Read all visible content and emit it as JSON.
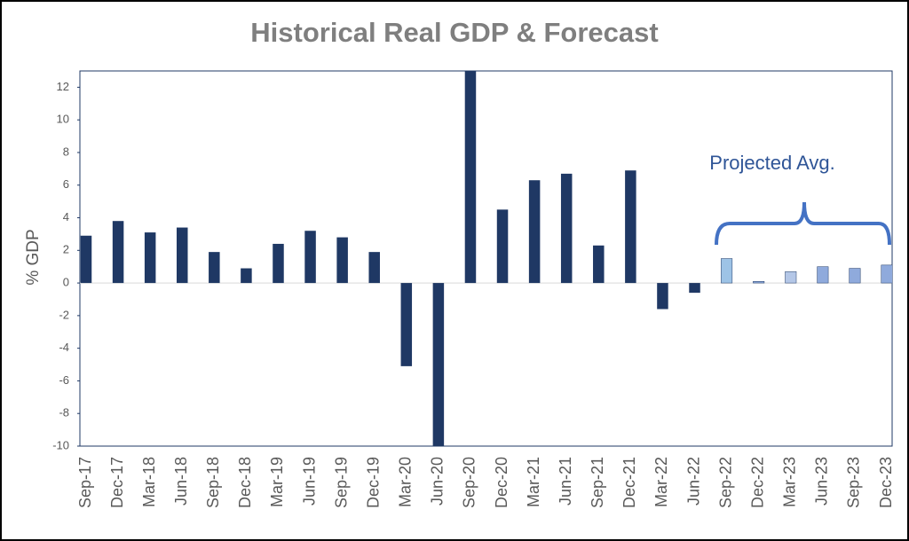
{
  "chart_data": {
    "type": "bar",
    "title": "Historical Real GDP & Forecast",
    "y_label": "% GDP",
    "annotation": "Projected Avg.",
    "categories": [
      "Sep-17",
      "Dec-17",
      "Mar-18",
      "Jun-18",
      "Sep-18",
      "Dec-18",
      "Mar-19",
      "Jun-19",
      "Sep-19",
      "Dec-19",
      "Mar-20",
      "Jun-20",
      "Sep-20",
      "Dec-20",
      "Mar-21",
      "Jun-21",
      "Sep-21",
      "Dec-21",
      "Mar-22",
      "Jun-22",
      "Sep-22",
      "Dec-22",
      "Mar-23",
      "Jun-23",
      "Sep-23",
      "Dec-23"
    ],
    "values": [
      2.9,
      3.8,
      3.1,
      3.4,
      1.9,
      0.9,
      2.4,
      3.2,
      2.8,
      1.9,
      -5.1,
      -10,
      13,
      4.5,
      6.3,
      6.7,
      2.3,
      6.9,
      -1.6,
      -0.6,
      1.5,
      0.1,
      0.7,
      1.0,
      0.9,
      1.1
    ],
    "colors": [
      "#1f3864",
      "#1f3864",
      "#1f3864",
      "#1f3864",
      "#1f3864",
      "#1f3864",
      "#1f3864",
      "#1f3864",
      "#1f3864",
      "#1f3864",
      "#1f3864",
      "#1f3864",
      "#1f3864",
      "#1f3864",
      "#1f3864",
      "#1f3864",
      "#1f3864",
      "#1f3864",
      "#1f3864",
      "#1f3864",
      "#9dc3e6",
      "#8faadc",
      "#b4c7e7",
      "#8faadc",
      "#8faadc",
      "#8faadc"
    ],
    "ylim": [
      -10,
      13
    ],
    "yticks": [
      -10,
      -8,
      -6,
      -4,
      -2,
      0,
      2,
      4,
      6,
      8,
      10,
      12
    ],
    "grid": false
  }
}
